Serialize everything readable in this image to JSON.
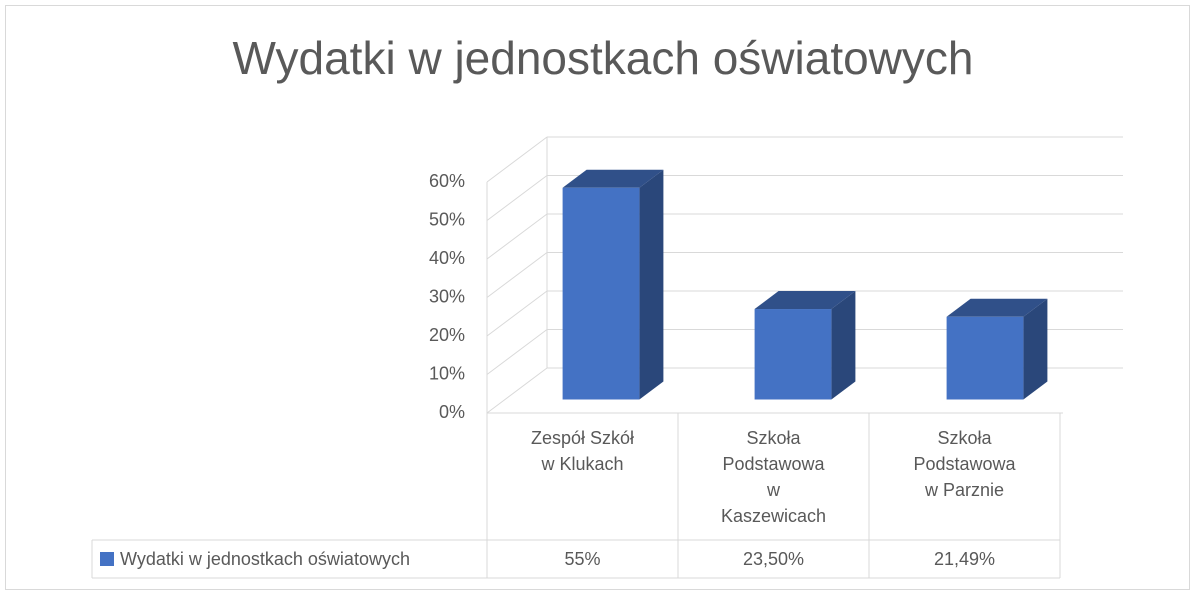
{
  "chart_data": {
    "type": "bar3d",
    "title": "Wydatki w jednostkach oświatowych",
    "categories": [
      "Zespół Szkół w Klukach",
      "Szkoła Podstawowa w Kaszewicach",
      "Szkoła Podstawowa w Parznie"
    ],
    "series": [
      {
        "name": "Wydatki w jednostkach oświatowych",
        "color": "#4472c4",
        "values": [
          55,
          23.5,
          21.49
        ],
        "value_labels": [
          "55%",
          "23,50%",
          "21,49%"
        ]
      }
    ],
    "ylim": [
      0,
      60
    ],
    "yticks": [
      {
        "value": 0,
        "label": "0%"
      },
      {
        "value": 10,
        "label": "10%"
      },
      {
        "value": 20,
        "label": "20%"
      },
      {
        "value": 30,
        "label": "30%"
      },
      {
        "value": 40,
        "label": "40%"
      },
      {
        "value": 50,
        "label": "50%"
      },
      {
        "value": 60,
        "label": "60%"
      }
    ],
    "grid": true,
    "data_table": true
  }
}
